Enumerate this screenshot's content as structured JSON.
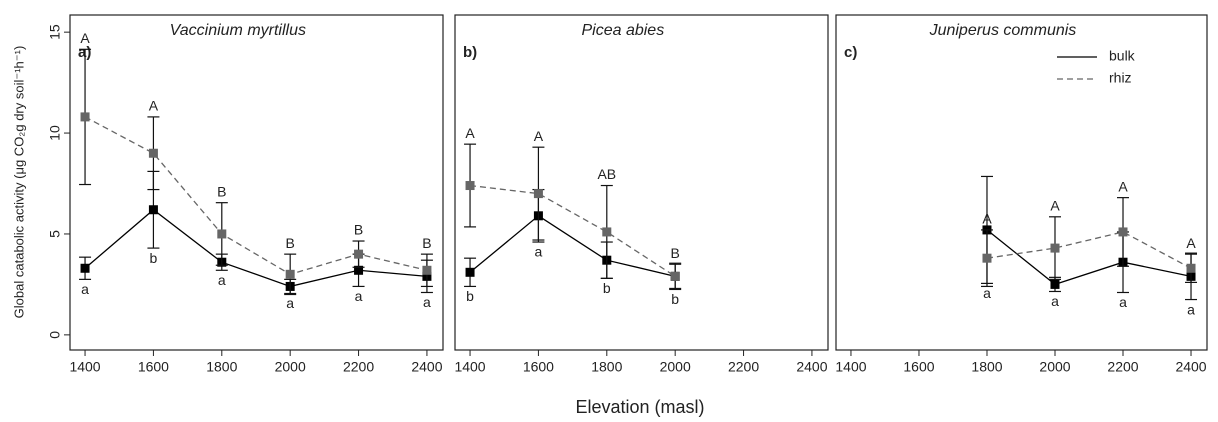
{
  "xlabel": "Elevation (masl)",
  "ylabel": "Global catabolic activity (μg CO₂g dry soil⁻¹h⁻¹)",
  "chart_data": [
    {
      "type": "line",
      "title": "Vaccinium myrtillus",
      "panel_label": "a)",
      "x": [
        1400,
        1600,
        1800,
        2000,
        2200,
        2400
      ],
      "xlim": [
        1356,
        2447
      ],
      "xticks": [
        1400,
        1600,
        1800,
        2000,
        2200,
        2400
      ],
      "ylim": [
        -0.75,
        15.85
      ],
      "yticks": [
        0,
        5,
        10,
        15
      ],
      "series": [
        {
          "name": "bulk",
          "color": "#000000",
          "linestyle": "solid",
          "values": [
            3.3,
            6.2,
            3.6,
            2.4,
            3.2,
            2.9
          ],
          "errors": [
            0.55,
            1.9,
            0.4,
            0.35,
            0.8,
            0.8
          ],
          "letters": [
            "a",
            "b",
            "a",
            "a",
            "a",
            "a"
          ]
        },
        {
          "name": "rhiz",
          "color": "#666666",
          "linestyle": "dashed",
          "values": [
            10.8,
            9.0,
            5.0,
            3.0,
            4.0,
            3.2
          ],
          "errors": [
            3.35,
            1.8,
            1.55,
            1.0,
            0.65,
            0.8
          ],
          "letters": [
            "A",
            "A",
            "B",
            "B",
            "B",
            "B"
          ]
        }
      ]
    },
    {
      "type": "line",
      "title": "Picea abies",
      "panel_label": "b)",
      "x": [
        1400,
        1600,
        1800,
        2000
      ],
      "xlim": [
        1356,
        2447
      ],
      "xticks": [
        1400,
        1600,
        1800,
        2000,
        2200,
        2400
      ],
      "ylim": [
        -0.75,
        15.85
      ],
      "series": [
        {
          "name": "bulk",
          "color": "#000000",
          "linestyle": "solid",
          "values": [
            3.1,
            5.9,
            3.7,
            2.9
          ],
          "errors": [
            0.7,
            1.3,
            0.9,
            0.65
          ],
          "letters": [
            "b",
            "a",
            "b",
            "b"
          ]
        },
        {
          "name": "rhiz",
          "color": "#666666",
          "linestyle": "dashed",
          "values": [
            7.4,
            7.0,
            5.1,
            2.9
          ],
          "errors": [
            2.05,
            2.3,
            2.3,
            0.6
          ],
          "letters": [
            "A",
            "A",
            "AB",
            "B"
          ]
        }
      ]
    },
    {
      "type": "line",
      "title": "Juniperus communis",
      "panel_label": "c)",
      "x": [
        1800,
        2000,
        2200,
        2400
      ],
      "xlim": [
        1356,
        2447
      ],
      "xticks": [
        1400,
        1600,
        1800,
        2000,
        2200,
        2400
      ],
      "ylim": [
        -0.75,
        15.85
      ],
      "legend": "upper right",
      "series": [
        {
          "name": "bulk",
          "color": "#000000",
          "linestyle": "solid",
          "values": [
            5.2,
            2.5,
            3.6,
            2.9
          ],
          "errors": [
            2.65,
            0.35,
            1.5,
            1.15
          ],
          "letters": [
            "a",
            "a",
            "a",
            "a"
          ]
        },
        {
          "name": "rhiz",
          "color": "#666666",
          "linestyle": "dashed",
          "values": [
            3.8,
            4.3,
            5.1,
            3.3
          ],
          "errors": [
            1.4,
            1.55,
            1.7,
            0.7
          ],
          "letters": [
            "A",
            "A",
            "A",
            "A"
          ]
        }
      ]
    }
  ]
}
